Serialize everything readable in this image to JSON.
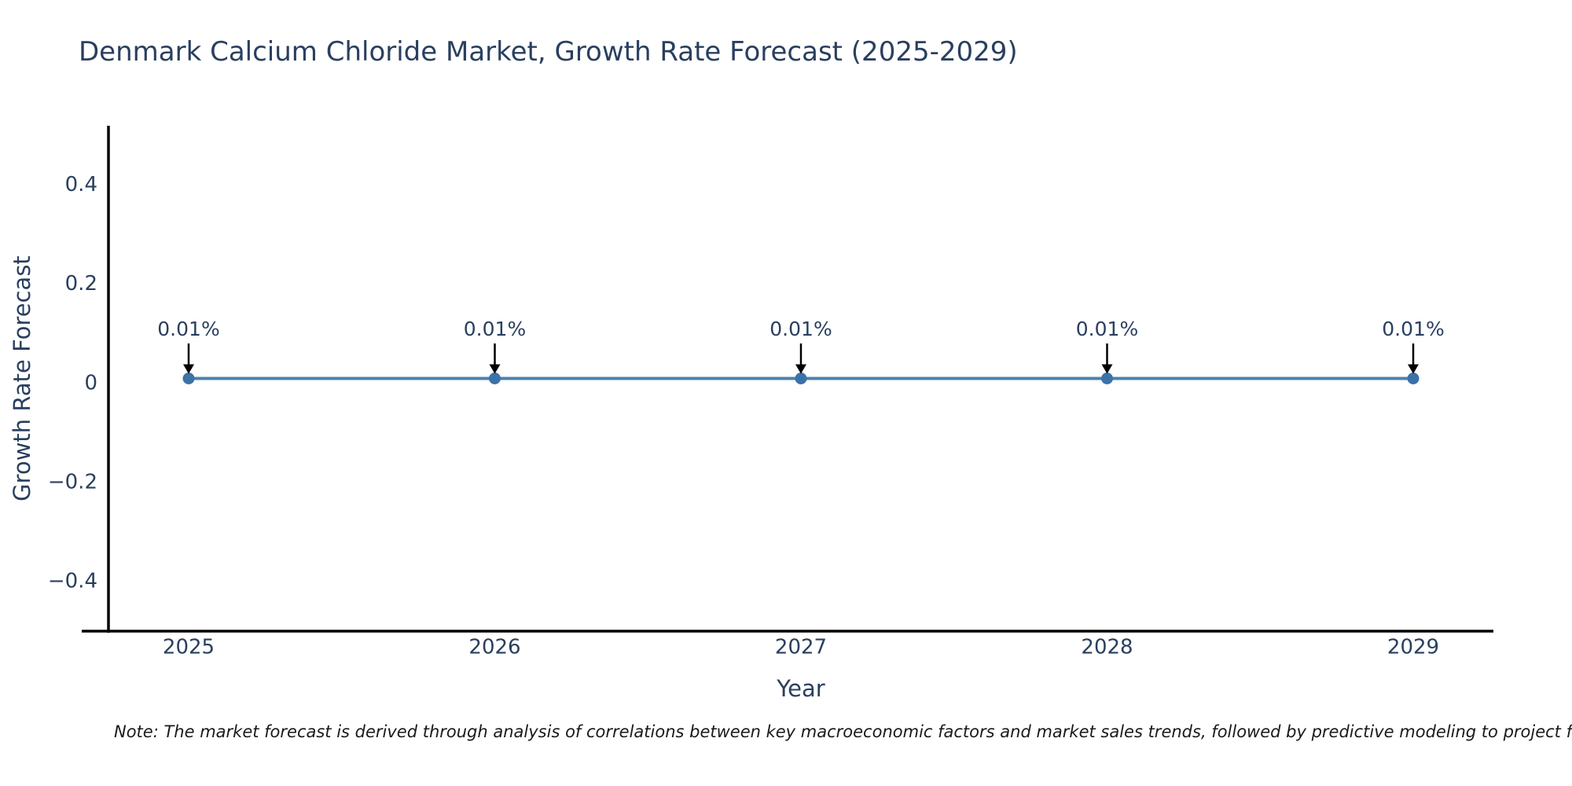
{
  "title": "Denmark Calcium Chloride Market, Growth Rate Forecast (2025-2029)",
  "note": "Note: The market forecast is derived through analysis of correlations between key macroeconomic factors and market sales trends, followed by predictive modeling to project future sal",
  "colors": {
    "text": "#2a3f5f",
    "axis_line": "#000000",
    "trace_line": "#4d81ad",
    "marker": "#3b72a8",
    "arrow": "#000000",
    "background": "#ffffff",
    "note_text": "#1a1a1a"
  },
  "chart_data": {
    "type": "line",
    "title": "Denmark Calcium Chloride Market, Growth Rate Forecast (2025-2029)",
    "categories": [
      "2025",
      "2026",
      "2027",
      "2028",
      "2029"
    ],
    "series": [
      {
        "name": "Growth Rate Forecast",
        "values": [
          0.01,
          0.01,
          0.01,
          0.01,
          0.01
        ]
      }
    ],
    "point_labels": [
      "0.01%",
      "0.01%",
      "0.01%",
      "0.01%",
      "0.01%"
    ],
    "xlabel": "Year",
    "ylabel": "Growth Rate Forecast",
    "ytick_values": [
      0.4,
      0.2,
      0,
      -0.2,
      -0.4
    ],
    "ytick_labels": [
      "0.4",
      "0.2",
      "0",
      "−0.2",
      "−0.4"
    ],
    "ylim": [
      -0.5,
      0.52
    ],
    "grid": false,
    "legend": "none",
    "annotation_arrows": true
  }
}
